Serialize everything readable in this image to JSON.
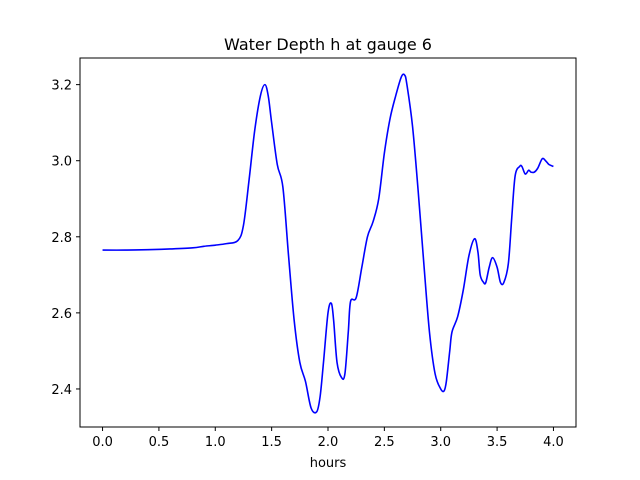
{
  "chart_data": {
    "type": "line",
    "title": "Water Depth h at gauge 6",
    "xlabel": "hours",
    "ylabel": "",
    "xlim": [
      -0.2,
      4.2
    ],
    "ylim": [
      2.3,
      3.27
    ],
    "xticks": [
      0.0,
      0.5,
      1.0,
      1.5,
      2.0,
      2.5,
      3.0,
      3.5,
      4.0
    ],
    "xtick_labels": [
      "0.0",
      "0.5",
      "1.0",
      "1.5",
      "2.0",
      "2.5",
      "3.0",
      "3.5",
      "4.0"
    ],
    "yticks": [
      2.4,
      2.6,
      2.8,
      3.0,
      3.2
    ],
    "ytick_labels": [
      "2.4",
      "2.6",
      "2.8",
      "3.0",
      "3.2"
    ],
    "grid": false,
    "series": [
      {
        "color": "#0000ff",
        "x": [
          0.0,
          0.2,
          0.4,
          0.6,
          0.8,
          0.9,
          1.0,
          1.1,
          1.2,
          1.25,
          1.3,
          1.35,
          1.4,
          1.44,
          1.47,
          1.5,
          1.55,
          1.6,
          1.65,
          1.7,
          1.75,
          1.8,
          1.85,
          1.9,
          1.93,
          1.96,
          2.0,
          2.03,
          2.05,
          2.08,
          2.12,
          2.15,
          2.18,
          2.2,
          2.25,
          2.3,
          2.35,
          2.4,
          2.45,
          2.5,
          2.55,
          2.6,
          2.65,
          2.68,
          2.7,
          2.75,
          2.8,
          2.85,
          2.9,
          2.95,
          3.0,
          3.03,
          3.05,
          3.08,
          3.1,
          3.15,
          3.2,
          3.25,
          3.3,
          3.33,
          3.35,
          3.38,
          3.4,
          3.43,
          3.46,
          3.5,
          3.53,
          3.56,
          3.6,
          3.63,
          3.66,
          3.7,
          3.72,
          3.75,
          3.78,
          3.8,
          3.83,
          3.86,
          3.9,
          3.93,
          3.96,
          4.0
        ],
        "y": [
          2.765,
          2.765,
          2.766,
          2.768,
          2.771,
          2.775,
          2.778,
          2.782,
          2.79,
          2.83,
          2.95,
          3.08,
          3.17,
          3.2,
          3.17,
          3.1,
          2.99,
          2.93,
          2.75,
          2.58,
          2.47,
          2.42,
          2.35,
          2.34,
          2.38,
          2.47,
          2.6,
          2.625,
          2.58,
          2.47,
          2.43,
          2.44,
          2.55,
          2.63,
          2.64,
          2.72,
          2.8,
          2.84,
          2.9,
          3.02,
          3.11,
          3.17,
          3.22,
          3.225,
          3.2,
          3.09,
          2.92,
          2.73,
          2.55,
          2.44,
          2.4,
          2.395,
          2.42,
          2.5,
          2.55,
          2.59,
          2.66,
          2.75,
          2.795,
          2.76,
          2.7,
          2.68,
          2.68,
          2.72,
          2.745,
          2.72,
          2.68,
          2.68,
          2.73,
          2.85,
          2.96,
          2.985,
          2.985,
          2.965,
          2.975,
          2.97,
          2.97,
          2.98,
          3.005,
          3.0,
          2.99,
          2.985
        ]
      }
    ]
  }
}
